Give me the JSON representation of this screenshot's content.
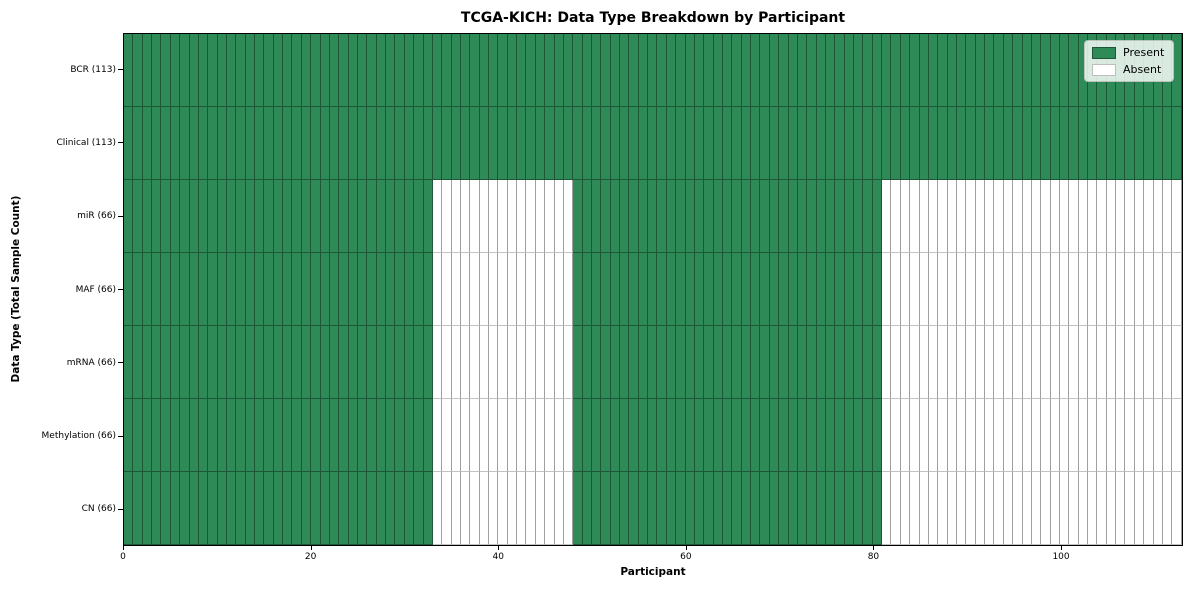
{
  "page": {
    "background": "#ffffff"
  },
  "chart_data": {
    "type": "heatmap",
    "title": "TCGA-KICH: Data Type Breakdown by Participant",
    "xlabel": "Participant",
    "ylabel": "Data Type (Total Sample Count)",
    "x_range": [
      0,
      113
    ],
    "x_tick_labels": [
      "0",
      "20",
      "40",
      "60",
      "80",
      "100"
    ],
    "x_tick_values": [
      0,
      20,
      40,
      60,
      80,
      100
    ],
    "n_participants": 113,
    "grid": false,
    "legend": {
      "position": "upper-right",
      "items": [
        {
          "label": "Present",
          "color": "#2e8b57"
        },
        {
          "label": "Absent",
          "color": "#ffffff"
        }
      ]
    },
    "colors": {
      "present_fill": "#2e8b57",
      "absent_fill": "#ffffff",
      "present_edge": "#1d5737",
      "absent_edge": "#a0a0a0",
      "axis_border": "#000000"
    },
    "rows": [
      {
        "label": "BCR (113)",
        "present_count": 113,
        "present_ranges": [
          [
            0,
            113
          ]
        ]
      },
      {
        "label": "Clinical (113)",
        "present_count": 113,
        "present_ranges": [
          [
            0,
            113
          ]
        ]
      },
      {
        "label": "miR (66)",
        "present_count": 66,
        "present_ranges": [
          [
            0,
            33
          ],
          [
            48,
            81
          ]
        ]
      },
      {
        "label": "MAF (66)",
        "present_count": 66,
        "present_ranges": [
          [
            0,
            33
          ],
          [
            48,
            81
          ]
        ]
      },
      {
        "label": "mRNA (66)",
        "present_count": 66,
        "present_ranges": [
          [
            0,
            33
          ],
          [
            48,
            81
          ]
        ]
      },
      {
        "label": "Methylation (66)",
        "present_count": 66,
        "present_ranges": [
          [
            0,
            33
          ],
          [
            48,
            81
          ]
        ]
      },
      {
        "label": "CN (66)",
        "present_count": 66,
        "present_ranges": [
          [
            0,
            33
          ],
          [
            48,
            81
          ]
        ]
      }
    ]
  }
}
